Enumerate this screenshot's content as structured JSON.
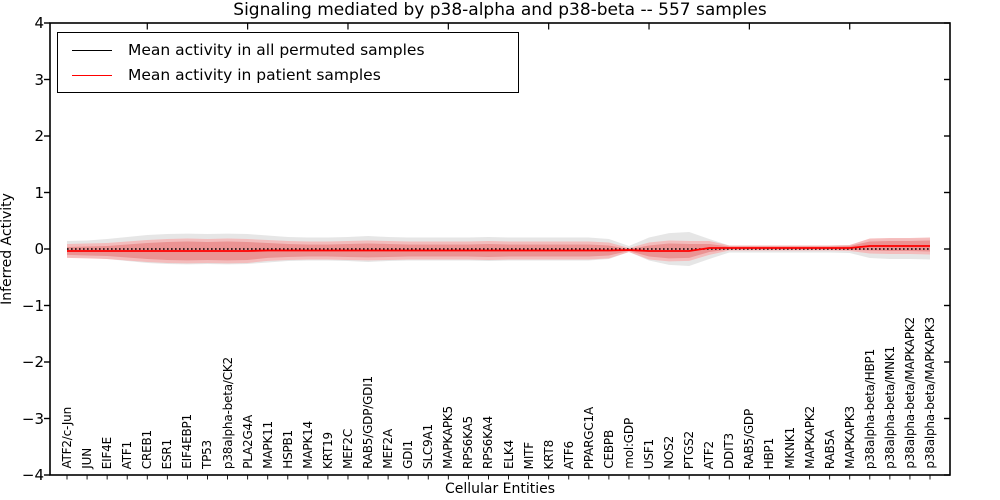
{
  "chart_data": {
    "type": "line",
    "title": "Signaling mediated by p38-alpha and p38-beta -- 557 samples",
    "xlabel": "Cellular Entities",
    "ylabel": "Inferred Activity",
    "ylim": [
      -4,
      4
    ],
    "ytick_labels": [
      "4",
      "3",
      "2",
      "1",
      "0",
      "−1",
      "−2",
      "−3",
      "−4"
    ],
    "grid": false,
    "legend": {
      "position": "upper left"
    },
    "categories": [
      "ATF2/c-Jun",
      "JUN",
      "EIF4E",
      "ATF1",
      "CREB1",
      "ESR1",
      "EIF4EBP1",
      "TP53",
      "p38alpha-beta/CK2",
      "PLA2G4A",
      "MAPK11",
      "HSPB1",
      "MAPK14",
      "KRT19",
      "MEF2C",
      "RAB5/GDP/GDI1",
      "MEF2A",
      "GDI1",
      "SLC9A1",
      "MAPKAPK5",
      "RPS6KA5",
      "RPS6KA4",
      "ELK4",
      "MITF",
      "KRT8",
      "ATF6",
      "PPARGC1A",
      "CEBPB",
      "mol:GDP",
      "USF1",
      "NOS2",
      "PTGS2",
      "ATF2",
      "DDIT3",
      "RAB5/GDP",
      "HBP1",
      "MKNK1",
      "MAPKAPK2",
      "RAB5A",
      "MAPKAPK3",
      "p38alpha-beta/HBP1",
      "p38alpha-beta/MNK1",
      "p38alpha-beta/MAPKAPK2",
      "p38alpha-beta/MAPKAPK3"
    ],
    "series": [
      {
        "name": "Mean activity in all permuted samples",
        "color": "#000000",
        "line_style": "dotted",
        "values": [
          0,
          0,
          0,
          0,
          0,
          0,
          0,
          0,
          0,
          0,
          0,
          0,
          0,
          0,
          0,
          0,
          0,
          0,
          0,
          0,
          0,
          0,
          0,
          0,
          0,
          0,
          0,
          0,
          0,
          0,
          0,
          0,
          0,
          0,
          0,
          0,
          0,
          0,
          0,
          0,
          0,
          0,
          0,
          0
        ]
      },
      {
        "name": "Mean activity in patient samples",
        "color": "#ff0000",
        "line_style": "solid",
        "values": [
          -0.035,
          -0.035,
          -0.035,
          -0.035,
          -0.035,
          -0.035,
          -0.035,
          -0.035,
          -0.035,
          -0.035,
          -0.026,
          -0.026,
          -0.026,
          -0.026,
          -0.026,
          -0.026,
          -0.026,
          -0.026,
          -0.026,
          -0.026,
          -0.026,
          -0.026,
          -0.026,
          -0.026,
          -0.026,
          -0.026,
          -0.026,
          -0.026,
          -0.018,
          -0.035,
          -0.035,
          -0.035,
          0.018,
          0.018,
          0.018,
          0.018,
          0.018,
          0.018,
          0.018,
          0.018,
          0.053,
          0.053,
          0.053,
          0.053
        ]
      }
    ],
    "bands": [
      {
        "name": "permuted-null-band",
        "color": "#e0e0e0",
        "opacity": 0.8,
        "center_series": 0,
        "half_widths": [
          0.141,
          0.15,
          0.176,
          0.212,
          0.247,
          0.265,
          0.273,
          0.265,
          0.273,
          0.265,
          0.238,
          0.212,
          0.203,
          0.203,
          0.212,
          0.229,
          0.212,
          0.203,
          0.203,
          0.203,
          0.203,
          0.212,
          0.203,
          0.203,
          0.203,
          0.203,
          0.203,
          0.176,
          0.053,
          0.203,
          0.282,
          0.3,
          0.176,
          0.062,
          0.062,
          0.062,
          0.062,
          0.062,
          0.062,
          0.07,
          0.16,
          0.176,
          0.176,
          0.185
        ]
      },
      {
        "name": "patient-band-outer",
        "color": "#f4b4b4",
        "opacity": 0.85,
        "center_series": 1,
        "half_widths": [
          0.123,
          0.132,
          0.141,
          0.168,
          0.194,
          0.212,
          0.22,
          0.212,
          0.22,
          0.212,
          0.185,
          0.168,
          0.159,
          0.159,
          0.168,
          0.176,
          0.168,
          0.159,
          0.159,
          0.159,
          0.159,
          0.168,
          0.159,
          0.159,
          0.159,
          0.159,
          0.159,
          0.141,
          0.035,
          0.15,
          0.185,
          0.176,
          0.123,
          0.044,
          0.044,
          0.044,
          0.044,
          0.044,
          0.044,
          0.053,
          0.132,
          0.141,
          0.141,
          0.15
        ]
      },
      {
        "name": "patient-band-inner",
        "color": "#ea8e8e",
        "opacity": 0.9,
        "center_series": 1,
        "half_widths": [
          0.07,
          0.079,
          0.088,
          0.115,
          0.141,
          0.159,
          0.167,
          0.159,
          0.167,
          0.159,
          0.132,
          0.115,
          0.106,
          0.106,
          0.115,
          0.123,
          0.115,
          0.106,
          0.106,
          0.106,
          0.106,
          0.115,
          0.106,
          0.106,
          0.106,
          0.106,
          0.106,
          0.088,
          0.018,
          0.097,
          0.132,
          0.123,
          0.07,
          0.026,
          0.026,
          0.026,
          0.026,
          0.026,
          0.026,
          0.035,
          0.079,
          0.088,
          0.088,
          0.097
        ]
      }
    ]
  }
}
